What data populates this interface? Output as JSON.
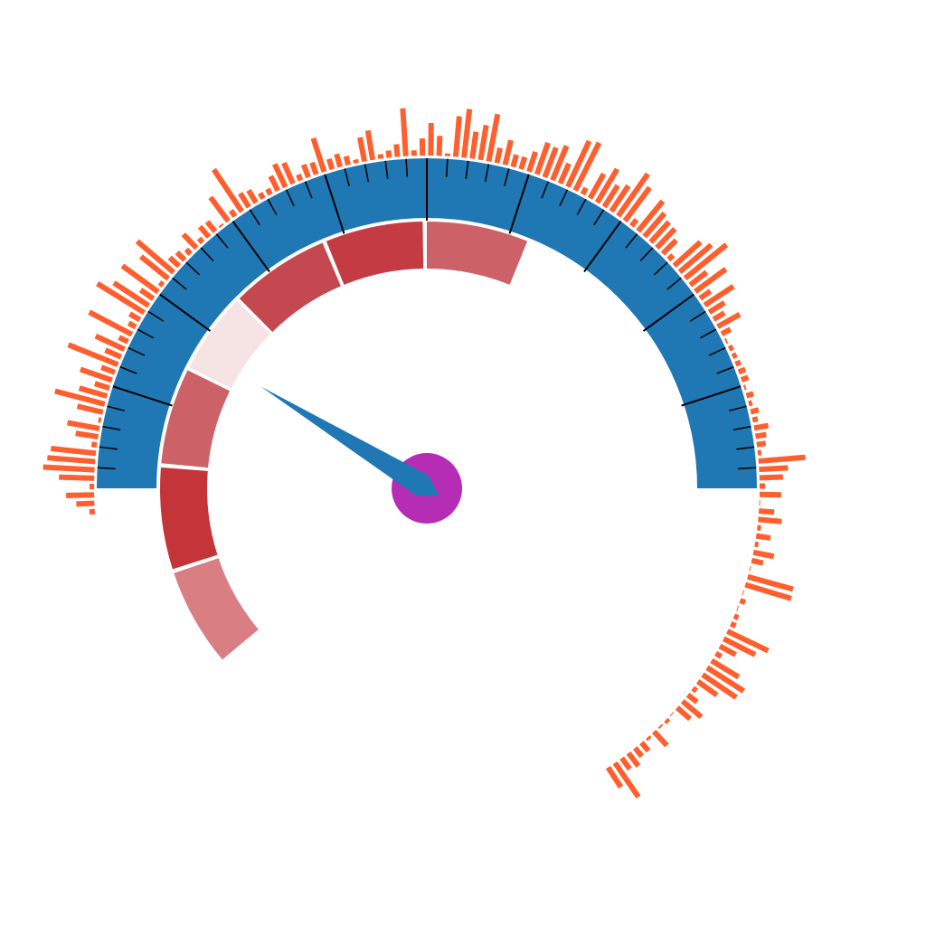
{
  "colors": {
    "background": "#ffffff",
    "scale_band": "#1f77b4",
    "needle": "#1f77b4",
    "hub": "#b52db5",
    "tick": "#000000",
    "radial_bars": "#ff5f2e"
  },
  "chart_data": {
    "type": "gauge",
    "title": "",
    "gauge_scale": {
      "min": 0,
      "max": 100,
      "start_angle_deg": 270,
      "end_angle_deg": 90,
      "major_tick_step": 10,
      "minor_tick_step": 2,
      "tick_labels_shown": false
    },
    "pointer": {
      "value": 17.5
    },
    "band_segments": [
      {
        "start": 50.0,
        "end": 62.3,
        "color": "#cd6168"
      },
      {
        "start": 37.7,
        "end": 49.5,
        "color": "#c43b43"
      },
      {
        "start": 25.2,
        "end": 37.2,
        "color": "#c54850"
      },
      {
        "start": 15.0,
        "end": 24.8,
        "color": "#f6e3e4"
      },
      {
        "start": 3.0,
        "end": 14.6,
        "color": "#cd6168"
      },
      {
        "start": -9.8,
        "end": 2.5,
        "color": "#c43439"
      },
      {
        "start": -22.2,
        "end": -10.3,
        "color": "#d97f84"
      }
    ],
    "radial_bars": {
      "start_angle_deg": -94,
      "end_angle_deg": 147,
      "lengths": [
        6,
        20,
        31,
        5,
        39,
        57,
        53,
        50,
        6,
        25,
        36,
        3,
        29,
        57,
        32,
        17,
        37,
        16,
        59,
        19,
        35,
        11,
        53,
        9,
        13,
        61,
        46,
        17,
        49,
        5,
        39,
        53,
        14,
        12,
        7,
        21,
        6,
        15,
        14,
        2,
        33,
        8,
        56,
        18,
        16,
        7,
        7,
        18,
        28,
        25,
        7,
        15,
        14,
        39,
        12,
        15,
        10,
        4,
        27,
        33,
        5,
        8,
        14,
        53,
        6,
        19,
        36,
        22,
        3,
        45,
        54,
        30,
        39,
        53,
        17,
        28,
        14,
        14,
        23,
        37,
        35,
        41,
        24,
        56,
        59,
        8,
        31,
        43,
        28,
        34,
        57,
        46,
        9,
        43,
        34,
        30,
        29,
        21,
        7,
        39,
        46,
        59,
        23,
        42,
        14,
        38,
        20,
        14,
        28,
        11,
        2,
        5,
        5,
        6,
        8,
        8,
        2,
        8,
        4,
        9,
        6,
        16,
        12,
        10,
        4,
        52,
        32,
        26,
        6,
        24,
        1,
        17,
        26,
        4,
        16,
        4,
        23,
        13,
        1,
        52,
        53,
        1,
        6,
        1,
        5,
        6,
        50,
        39,
        20,
        7,
        35,
        48,
        45,
        26,
        5,
        13,
        27,
        19,
        1,
        4,
        2,
        21,
        3,
        12,
        12,
        18,
        15,
        46,
        26
      ]
    }
  }
}
